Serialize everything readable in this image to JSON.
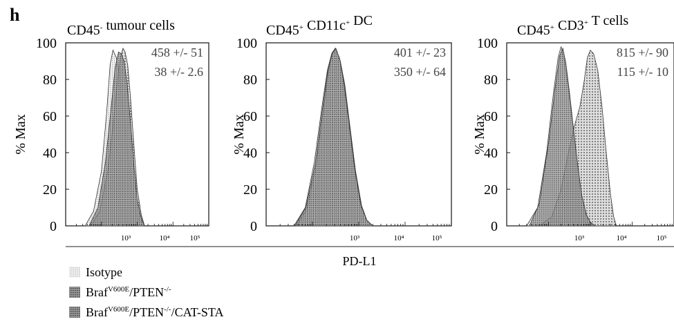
{
  "figure": {
    "panel_letter": "h",
    "shared_xlabel": "PD-L1",
    "ylabel": "% Max"
  },
  "legend": [
    {
      "label": "Isotype",
      "color": "#d4d4d4"
    },
    {
      "base": "Braf",
      "sup": "V600E",
      "rest": "/PTEN",
      "sup2": "-/-",
      "tail": "",
      "color": "#7c7c7c"
    },
    {
      "base": "Braf",
      "sup": "V600E",
      "rest": "/PTEN",
      "sup2": "-/-",
      "tail": "/CAT-STA",
      "color": "#9b9b9b"
    }
  ],
  "chart_data": [
    {
      "type": "area",
      "title_parts": [
        {
          "t": "CD45"
        },
        {
          "t": "-",
          "sup": true
        },
        {
          "t": " tumour cells"
        }
      ],
      "xscale": "log",
      "xlim": [
        10,
        100000
      ],
      "ylim": [
        0,
        100
      ],
      "yticks": [
        0,
        20,
        40,
        60,
        80,
        100
      ],
      "xtick_labels": [
        "10³",
        "10⁴",
        "10⁵"
      ],
      "annotations": [
        "458 +/- 51",
        "38 +/- 2.6"
      ],
      "series": [
        {
          "x": [
            35,
            60,
            100,
            140,
            175,
            210,
            260,
            330,
            420,
            550,
            700,
            900,
            1100,
            1300
          ],
          "y": [
            0,
            8,
            30,
            62,
            88,
            96,
            92,
            80,
            60,
            38,
            20,
            8,
            3,
            0
          ]
        },
        {
          "x": [
            50,
            90,
            150,
            220,
            280,
            340,
            400,
            460,
            540,
            650,
            800,
            1000,
            1300,
            1600
          ],
          "y": [
            0,
            8,
            30,
            58,
            80,
            92,
            97,
            95,
            88,
            70,
            45,
            20,
            6,
            0
          ]
        },
        {
          "x": [
            45,
            80,
            130,
            190,
            240,
            300,
            360,
            430,
            520,
            640,
            800,
            1000,
            1300,
            1600
          ],
          "y": [
            0,
            10,
            35,
            66,
            86,
            95,
            94,
            90,
            78,
            58,
            34,
            14,
            4,
            0
          ]
        }
      ]
    },
    {
      "type": "area",
      "title_parts": [
        {
          "t": "CD45"
        },
        {
          "t": "+",
          "sup": true
        },
        {
          "t": " CD11c"
        },
        {
          "t": "+",
          "sup": true
        },
        {
          "t": " DC"
        }
      ],
      "xscale": "log",
      "xlim": [
        10,
        100000
      ],
      "ylim": [
        0,
        100
      ],
      "yticks": [
        0,
        20,
        40,
        60,
        80,
        100
      ],
      "xtick_labels": [
        "10³",
        "10⁴",
        "10⁵"
      ],
      "annotations": [
        "401 +/- 23",
        "350 +/- 64"
      ],
      "series": [
        {
          "x": [
            40,
            70,
            110,
            160,
            210,
            260,
            310,
            380,
            470,
            600,
            800,
            1100,
            1500,
            2000
          ],
          "y": [
            0,
            10,
            35,
            65,
            85,
            94,
            97,
            92,
            80,
            58,
            32,
            12,
            3,
            0
          ]
        },
        {
          "x": [
            45,
            75,
            120,
            170,
            220,
            270,
            330,
            400,
            500,
            640,
            850,
            1150,
            1500,
            2000
          ],
          "y": [
            0,
            9,
            33,
            62,
            84,
            95,
            96,
            90,
            77,
            55,
            30,
            11,
            3,
            0
          ]
        },
        {
          "x": [
            42,
            72,
            115,
            165,
            215,
            265,
            320,
            390,
            480,
            620,
            820,
            1120,
            1500,
            2000
          ],
          "y": [
            0,
            10,
            34,
            64,
            85,
            94,
            97,
            91,
            78,
            56,
            31,
            11,
            3,
            0
          ]
        }
      ]
    },
    {
      "type": "area",
      "title_parts": [
        {
          "t": "CD45"
        },
        {
          "t": "+",
          "sup": true
        },
        {
          "t": " CD3"
        },
        {
          "t": "+",
          "sup": true
        },
        {
          "t": " T cells"
        }
      ],
      "xscale": "log",
      "xlim": [
        10,
        100000
      ],
      "ylim": [
        0,
        100
      ],
      "yticks": [
        0,
        20,
        40,
        60,
        80,
        100
      ],
      "xtick_labels": [
        "10³",
        "10⁴",
        "10⁵"
      ],
      "annotations": [
        "815 +/- 90",
        "115 +/- 10"
      ],
      "series": [
        {
          "x": [
            30,
            55,
            90,
            130,
            170,
            200,
            240,
            300,
            380,
            480,
            600,
            800,
            1000,
            1300
          ],
          "y": [
            0,
            10,
            40,
            72,
            92,
            98,
            90,
            75,
            55,
            35,
            18,
            7,
            2,
            0
          ]
        },
        {
          "x": [
            60,
            120,
            200,
            300,
            420,
            560,
            700,
            850,
            1000,
            1200,
            1500,
            1900,
            2400,
            3000,
            3600,
            4200
          ],
          "y": [
            0,
            5,
            20,
            40,
            55,
            65,
            78,
            92,
            96,
            94,
            85,
            65,
            40,
            18,
            5,
            0
          ]
        },
        {
          "x": [
            35,
            60,
            100,
            145,
            185,
            220,
            260,
            320,
            400,
            500,
            620,
            800,
            1000,
            1300
          ],
          "y": [
            0,
            12,
            45,
            76,
            93,
            97,
            89,
            72,
            52,
            33,
            17,
            6,
            2,
            0
          ]
        }
      ]
    }
  ]
}
